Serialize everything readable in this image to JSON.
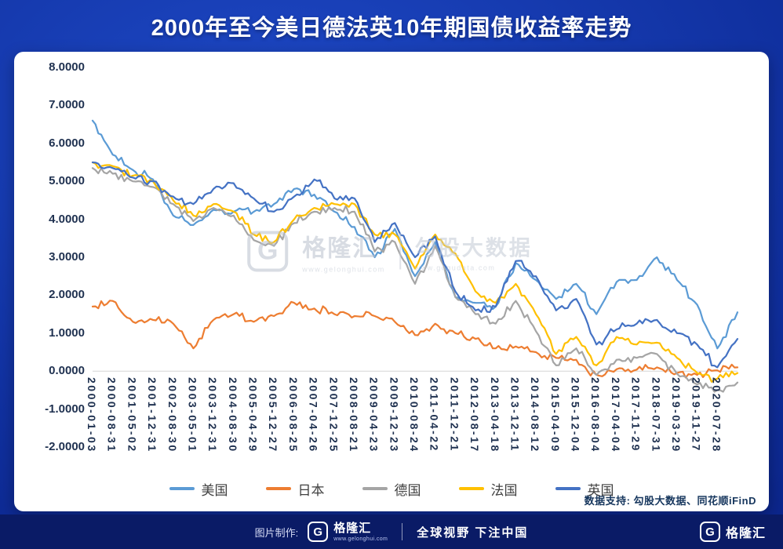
{
  "title": "2000年至今美日德法英10年期国债收益率走势",
  "watermark": {
    "logo_letter": "G",
    "brand": "格隆汇",
    "brand_url": "www.gelonghui.com",
    "partner": "勾股大数据",
    "partner_url": "www.gogudata.com"
  },
  "data_source_note": "数据支持:  勾股大数据、同花顺iFinD",
  "footer": {
    "made_by_label": "图片制作:",
    "logo_letter": "G",
    "brand": "格隆汇",
    "brand_url": "www.gelonghui.com",
    "slogan": "全球视野 下注中国",
    "right_logo_letter": "G",
    "right_brand": "格隆汇"
  },
  "colors": {
    "background": "#10309f",
    "footer_bar": "#0a1b66",
    "card": "#ffffff",
    "axis_text": "#1f3150",
    "us": "#5B9BD5",
    "japan": "#ED7D31",
    "germany": "#A5A5A5",
    "france": "#FFC000",
    "uk": "#4472C4"
  },
  "chart_data": {
    "type": "line",
    "title": "2000年至今美日德法英10年期国债收益率走势",
    "ylabel": "",
    "xlabel": "",
    "ylim": [
      -2,
      8
    ],
    "grid": false,
    "legend_position": "bottom",
    "y_ticks": [
      "8.0000",
      "7.0000",
      "6.0000",
      "5.0000",
      "4.0000",
      "3.0000",
      "2.0000",
      "1.0000",
      "0.0000",
      "-1.0000",
      "-2.0000"
    ],
    "categories": [
      "2000-01-03",
      "2000-08-31",
      "2001-05-02",
      "2001-12-31",
      "2002-08-30",
      "2003-05-01",
      "2003-12-31",
      "2004-08-30",
      "2005-04-29",
      "2005-12-27",
      "2006-08-25",
      "2007-04-26",
      "2007-12-25",
      "2008-08-21",
      "2009-04-23",
      "2009-12-23",
      "2010-08-24",
      "2011-04-22",
      "2011-12-21",
      "2012-08-17",
      "2013-04-18",
      "2013-12-11",
      "2014-08-12",
      "2015-04-09",
      "2015-12-04",
      "2016-08-04",
      "2017-04-04",
      "2017-11-29",
      "2018-07-31",
      "2019-03-29",
      "2019-11-27",
      "2020-07-28"
    ],
    "values_note": "33 values per series: 32 at the labeled dates plus a final value where the line meets the right edge of the plot",
    "series": [
      {
        "name": "美国",
        "color": "#5B9BD5",
        "values": [
          6.6,
          5.7,
          5.3,
          5.05,
          4.1,
          3.85,
          4.25,
          4.2,
          4.2,
          4.4,
          4.8,
          4.65,
          4.2,
          3.8,
          3.0,
          3.75,
          2.5,
          3.4,
          1.95,
          1.8,
          1.7,
          2.85,
          2.4,
          1.9,
          2.3,
          1.5,
          2.35,
          2.4,
          3.0,
          2.4,
          1.75,
          0.6,
          1.55
        ]
      },
      {
        "name": "日本",
        "color": "#ED7D31",
        "values": [
          1.7,
          1.85,
          1.3,
          1.35,
          1.25,
          0.6,
          1.35,
          1.5,
          1.3,
          1.45,
          1.8,
          1.65,
          1.5,
          1.45,
          1.45,
          1.3,
          0.95,
          1.25,
          1.0,
          0.85,
          0.6,
          0.65,
          0.5,
          0.35,
          0.3,
          -0.1,
          0.05,
          0.04,
          0.1,
          -0.05,
          -0.1,
          0.02,
          0.1
        ]
      },
      {
        "name": "德国",
        "color": "#A5A5A5",
        "values": [
          5.35,
          5.2,
          5.0,
          4.85,
          4.4,
          3.95,
          4.3,
          4.1,
          3.45,
          3.3,
          3.9,
          4.2,
          4.3,
          4.2,
          3.15,
          3.4,
          2.3,
          3.3,
          1.95,
          1.5,
          1.25,
          1.85,
          1.05,
          0.15,
          0.6,
          -0.1,
          0.3,
          0.35,
          0.45,
          -0.07,
          -0.35,
          -0.5,
          -0.3
        ]
      },
      {
        "name": "法国",
        "color": "#FFC000",
        "values": [
          5.5,
          5.4,
          5.15,
          5.0,
          4.5,
          4.1,
          4.4,
          4.2,
          3.6,
          3.4,
          4.0,
          4.3,
          4.4,
          4.4,
          3.6,
          3.6,
          2.7,
          3.6,
          3.1,
          2.1,
          1.8,
          2.3,
          1.5,
          0.45,
          0.9,
          0.15,
          0.9,
          0.7,
          0.75,
          0.35,
          -0.05,
          -0.2,
          -0.05
        ]
      },
      {
        "name": "英国",
        "color": "#4472C4",
        "values": [
          5.5,
          5.35,
          5.1,
          5.0,
          4.6,
          4.4,
          4.8,
          4.95,
          4.55,
          4.2,
          4.6,
          5.05,
          4.55,
          4.55,
          3.4,
          3.9,
          3.0,
          3.55,
          2.1,
          1.6,
          1.7,
          2.9,
          2.5,
          1.6,
          1.9,
          0.7,
          1.1,
          1.25,
          1.35,
          1.0,
          0.7,
          0.1,
          0.85
        ]
      }
    ]
  }
}
